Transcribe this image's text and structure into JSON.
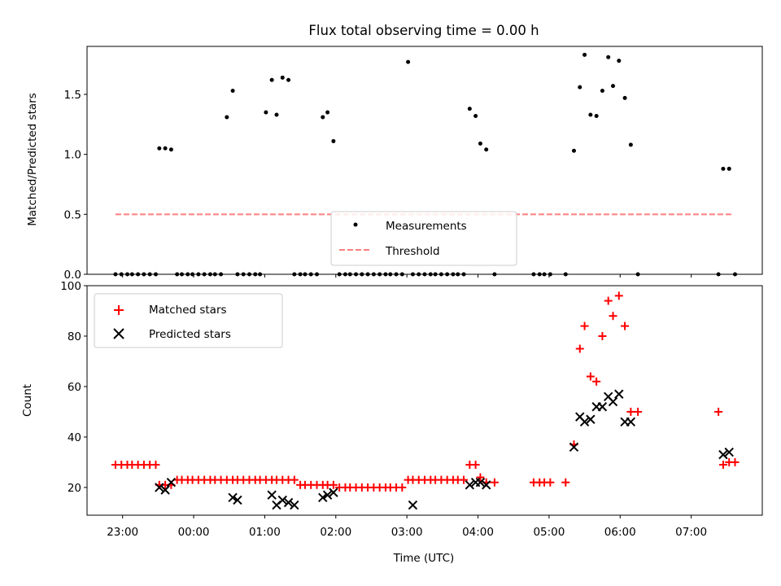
{
  "figure": {
    "title": "Flux total observing time = 0.00 h"
  },
  "chart_data": [
    {
      "type": "scatter",
      "ylabel": "Matched/Predicted stars",
      "xlim": [
        "22:30",
        "08:00"
      ],
      "ylim": [
        0,
        1.9
      ],
      "yticks": [
        "0.0",
        "0.5",
        "1.0",
        "1.5"
      ],
      "xticks": [
        "23:00",
        "00:00",
        "01:00",
        "02:00",
        "03:00",
        "04:00",
        "05:00",
        "06:00",
        "07:00"
      ],
      "grid": false,
      "legend_position": "bottom-center",
      "series": [
        {
          "name": "Measurements",
          "kind": "scatter",
          "color": "#000000",
          "x": [
            "22:54",
            "22:59",
            "23:04",
            "23:08",
            "23:13",
            "23:18",
            "23:23",
            "23:28",
            "23:31",
            "23:36",
            "23:41",
            "23:46",
            "23:50",
            "23:55",
            "23:59",
            "00:04",
            "00:09",
            "00:14",
            "00:18",
            "00:23",
            "00:28",
            "00:33",
            "00:37",
            "00:42",
            "00:47",
            "00:52",
            "00:56",
            "01:01",
            "01:06",
            "01:10",
            "01:15",
            "01:20",
            "01:25",
            "01:30",
            "01:34",
            "01:39",
            "01:44",
            "01:49",
            "01:53",
            "01:58",
            "02:03",
            "02:08",
            "02:12",
            "02:17",
            "02:22",
            "02:27",
            "02:32",
            "02:37",
            "02:42",
            "02:46",
            "02:51",
            "02:56",
            "03:01",
            "03:05",
            "03:10",
            "03:15",
            "03:20",
            "03:24",
            "03:29",
            "03:34",
            "03:39",
            "03:43",
            "03:48",
            "03:53",
            "03:58",
            "04:02",
            "04:07",
            "04:14",
            "04:47",
            "04:52",
            "04:56",
            "05:01",
            "05:14",
            "05:21",
            "05:26",
            "05:30",
            "05:35",
            "05:40",
            "05:45",
            "05:50",
            "05:54",
            "05:59",
            "06:04",
            "06:09",
            "06:15",
            "07:23",
            "07:27",
            "07:32",
            "07:37"
          ],
          "y": [
            0,
            0,
            0,
            0,
            0,
            0,
            0,
            0,
            1.05,
            1.05,
            1.04,
            0,
            0,
            0,
            0,
            0,
            0,
            0,
            0,
            0,
            1.31,
            1.53,
            0,
            0,
            0,
            0,
            0,
            1.35,
            1.62,
            1.33,
            1.64,
            1.62,
            0,
            0,
            0,
            0,
            0,
            1.31,
            1.35,
            1.11,
            0,
            0,
            0,
            0,
            0,
            0,
            0,
            0,
            0,
            0,
            0,
            0,
            1.77,
            0,
            0,
            0,
            0,
            0,
            0,
            0,
            0,
            0,
            0,
            1.38,
            1.32,
            1.09,
            1.04,
            0,
            0,
            0,
            0,
            0,
            0,
            1.03,
            1.56,
            1.83,
            1.33,
            1.32,
            1.53,
            1.81,
            1.57,
            1.78,
            1.47,
            1.08,
            0,
            0,
            0.88,
            0.88,
            0
          ]
        },
        {
          "name": "Threshold",
          "kind": "line",
          "style": "dashed",
          "color": "#ff7f7f",
          "x": [
            "22:54",
            "07:36"
          ],
          "y": [
            0.5,
            0.5
          ]
        }
      ]
    },
    {
      "type": "scatter",
      "xlabel": "Time (UTC)",
      "ylabel": "Count",
      "xlim": [
        "22:30",
        "08:00"
      ],
      "ylim": [
        9,
        100
      ],
      "yticks": [
        "20",
        "40",
        "60",
        "80",
        "100"
      ],
      "xticks": [
        "23:00",
        "00:00",
        "01:00",
        "02:00",
        "03:00",
        "04:00",
        "05:00",
        "06:00",
        "07:00"
      ],
      "grid": false,
      "legend_position": "top-left",
      "series": [
        {
          "name": "Matched stars",
          "marker": "+",
          "color": "#ff0000",
          "x": [
            "22:54",
            "22:59",
            "23:04",
            "23:08",
            "23:13",
            "23:18",
            "23:23",
            "23:28",
            "23:31",
            "23:36",
            "23:41",
            "23:46",
            "23:50",
            "23:55",
            "23:59",
            "00:04",
            "00:09",
            "00:14",
            "00:18",
            "00:23",
            "00:28",
            "00:33",
            "00:37",
            "00:42",
            "00:47",
            "00:52",
            "00:56",
            "01:01",
            "01:06",
            "01:10",
            "01:15",
            "01:20",
            "01:25",
            "01:30",
            "01:34",
            "01:39",
            "01:44",
            "01:49",
            "01:53",
            "01:58",
            "02:03",
            "02:08",
            "02:12",
            "02:17",
            "02:22",
            "02:27",
            "02:32",
            "02:37",
            "02:42",
            "02:46",
            "02:51",
            "02:56",
            "03:01",
            "03:05",
            "03:10",
            "03:15",
            "03:20",
            "03:24",
            "03:29",
            "03:34",
            "03:39",
            "03:43",
            "03:48",
            "03:53",
            "03:58",
            "04:02",
            "04:07",
            "04:14",
            "04:47",
            "04:52",
            "04:56",
            "05:01",
            "05:14",
            "05:21",
            "05:26",
            "05:30",
            "05:35",
            "05:40",
            "05:45",
            "05:50",
            "05:54",
            "05:59",
            "06:04",
            "06:09",
            "06:15",
            "07:23",
            "07:27",
            "07:32",
            "07:37"
          ],
          "y": [
            29,
            29,
            29,
            29,
            29,
            29,
            29,
            29,
            21,
            21,
            21,
            23,
            23,
            23,
            23,
            23,
            23,
            23,
            23,
            23,
            23,
            23,
            23,
            23,
            23,
            23,
            23,
            23,
            23,
            23,
            23,
            23,
            23,
            21,
            21,
            21,
            21,
            21,
            21,
            21,
            20,
            20,
            20,
            20,
            20,
            20,
            20,
            20,
            20,
            20,
            20,
            20,
            23,
            23,
            23,
            23,
            23,
            23,
            23,
            23,
            23,
            23,
            23,
            29,
            29,
            24,
            22,
            22,
            22,
            22,
            22,
            22,
            22,
            37,
            75,
            84,
            64,
            62,
            80,
            94,
            88,
            96,
            84,
            50,
            50,
            50,
            29,
            30,
            30
          ]
        },
        {
          "name": "Predicted stars",
          "marker": "x",
          "color": "#000000",
          "x": [
            "23:31",
            "23:36",
            "23:41",
            "00:33",
            "00:37",
            "01:06",
            "01:10",
            "01:15",
            "01:20",
            "01:25",
            "01:49",
            "01:53",
            "01:58",
            "03:05",
            "03:53",
            "03:58",
            "04:02",
            "04:07",
            "05:21",
            "05:26",
            "05:30",
            "05:35",
            "05:40",
            "05:45",
            "05:50",
            "05:54",
            "05:59",
            "06:04",
            "06:09",
            "07:27",
            "07:32"
          ],
          "y": [
            20,
            19,
            22,
            16,
            15,
            17,
            13,
            15,
            14,
            13,
            16,
            17,
            18,
            13,
            21,
            22,
            22,
            21,
            36,
            48,
            46,
            47,
            52,
            52,
            56,
            54,
            57,
            46,
            46,
            33,
            34
          ]
        }
      ]
    }
  ]
}
